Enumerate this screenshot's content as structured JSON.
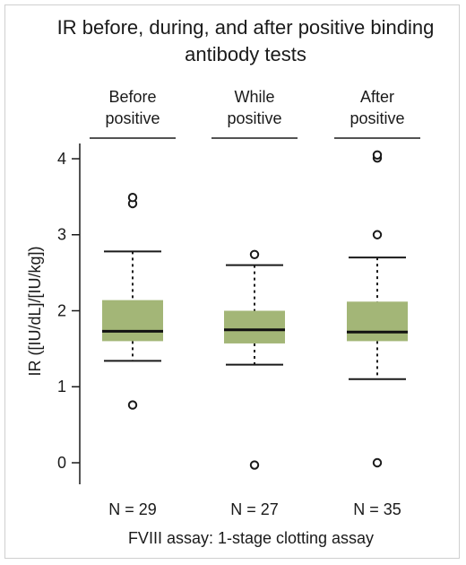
{
  "chart_data": {
    "type": "boxplot",
    "title": [
      "IR before, during, and after positive binding",
      "antibody tests"
    ],
    "ylabel": "IR ([IU/dL]/[IU/kg])",
    "xlabel": "FVIII assay: 1-stage clotting assay",
    "ylim": [
      -0.3,
      4.1
    ],
    "yticks": [
      0,
      1,
      2,
      3,
      4
    ],
    "box_color": "#a3b677",
    "groups": [
      {
        "label_lines": [
          "Before",
          "positive"
        ],
        "n_label": "N = 29",
        "whisker_low": 1.34,
        "q1": 1.6,
        "median": 1.73,
        "q3": 2.14,
        "whisker_high": 2.78,
        "outliers": [
          3.41,
          3.49,
          0.76
        ]
      },
      {
        "label_lines": [
          "While",
          "positive"
        ],
        "n_label": "N = 27",
        "whisker_low": 1.29,
        "q1": 1.57,
        "median": 1.75,
        "q3": 2.0,
        "whisker_high": 2.6,
        "outliers": [
          2.74,
          -0.03
        ]
      },
      {
        "label_lines": [
          "After",
          "positive"
        ],
        "n_label": "N = 35",
        "whisker_low": 1.1,
        "q1": 1.6,
        "median": 1.72,
        "q3": 2.12,
        "whisker_high": 2.7,
        "outliers": [
          3.0,
          4.01,
          4.05,
          0.0
        ]
      }
    ]
  }
}
